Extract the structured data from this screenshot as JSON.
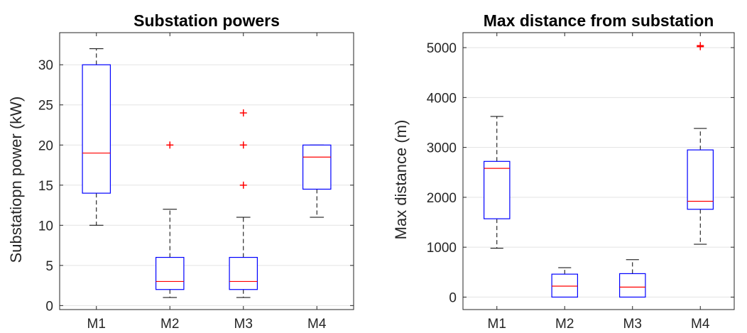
{
  "chart_data": [
    {
      "type": "box",
      "title": "Substation powers",
      "xlabel": "",
      "ylabel": "Substatiopn power (kW)",
      "categories": [
        "M1",
        "M2",
        "M3",
        "M4"
      ],
      "ylim": [
        -0.5,
        34
      ],
      "yticks": [
        0,
        5,
        10,
        15,
        20,
        25,
        30
      ],
      "grid": "horizontal",
      "box_color": "#0000ff",
      "median_color": "#ff0000",
      "outlier_color": "#ff0000",
      "boxes": [
        {
          "category": "M1",
          "whisker_low": 10,
          "q1": 14,
          "median": 19,
          "q3": 30,
          "whisker_high": 32,
          "outliers": []
        },
        {
          "category": "M2",
          "whisker_low": 1,
          "q1": 2,
          "median": 3,
          "q3": 6,
          "whisker_high": 12,
          "outliers": [
            20
          ]
        },
        {
          "category": "M3",
          "whisker_low": 1,
          "q1": 2,
          "median": 3,
          "q3": 6,
          "whisker_high": 11,
          "outliers": [
            15,
            20,
            24
          ]
        },
        {
          "category": "M4",
          "whisker_low": 11,
          "q1": 14.5,
          "median": 18.5,
          "q3": 20,
          "whisker_high": 20,
          "outliers": []
        }
      ]
    },
    {
      "type": "box",
      "title": "Max distance from substation",
      "xlabel": "",
      "ylabel": "Max distance (m)",
      "categories": [
        "M1",
        "M2",
        "M3",
        "M4"
      ],
      "ylim": [
        -250,
        5300
      ],
      "yticks": [
        0,
        1000,
        2000,
        3000,
        4000,
        5000
      ],
      "grid": "horizontal",
      "box_color": "#0000ff",
      "median_color": "#ff0000",
      "outlier_color": "#ff0000",
      "boxes": [
        {
          "category": "M1",
          "whisker_low": 980,
          "q1": 1570,
          "median": 2580,
          "q3": 2720,
          "whisker_high": 3620,
          "outliers": []
        },
        {
          "category": "M2",
          "whisker_low": 0,
          "q1": 0,
          "median": 220,
          "q3": 460,
          "whisker_high": 590,
          "outliers": []
        },
        {
          "category": "M3",
          "whisker_low": 0,
          "q1": 0,
          "median": 200,
          "q3": 470,
          "whisker_high": 750,
          "outliers": []
        },
        {
          "category": "M4",
          "whisker_low": 1060,
          "q1": 1760,
          "median": 1920,
          "q3": 2950,
          "whisker_high": 3380,
          "outliers": [
            5020,
            5040
          ]
        }
      ]
    }
  ]
}
